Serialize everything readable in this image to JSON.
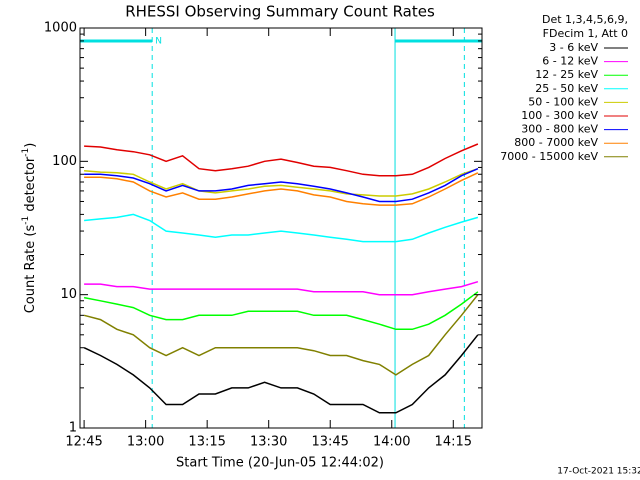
{
  "chart_data": {
    "type": "line",
    "title": "RHESSI Observing Summary Count Rates",
    "xlabel": "Start Time (20-Jun-05 12:44:02)",
    "ylabel": [
      "Count Rate (s",
      "-1",
      " detector",
      "-1",
      ")"
    ],
    "legend_header": [
      "Det 1,3,4,5,6,9,",
      "FDecim 1, Att 0"
    ],
    "footer": "17-Oct-2021 15:32",
    "log_y": true,
    "xlim": [
      764,
      862
    ],
    "ylim": [
      1,
      1000
    ],
    "yticks": [
      1,
      10,
      100,
      1000
    ],
    "xticks": [
      {
        "value": 765,
        "label": "12:45"
      },
      {
        "value": 780,
        "label": "13:00"
      },
      {
        "value": 795,
        "label": "13:15"
      },
      {
        "value": 810,
        "label": "13:30"
      },
      {
        "value": 825,
        "label": "13:45"
      },
      {
        "value": 840,
        "label": "14:00"
      },
      {
        "value": 855,
        "label": "14:15"
      }
    ],
    "markers": [
      {
        "x": 764,
        "style": "solid"
      },
      {
        "x": 781.6,
        "style": "dashed"
      },
      {
        "x": 840.8,
        "style": "solid"
      },
      {
        "x": 857.7,
        "style": "dashed"
      }
    ],
    "bars": [
      {
        "range": [
          764,
          781.6
        ],
        "label": "N"
      },
      {
        "range": [
          840.8,
          862
        ]
      }
    ],
    "marker_color": "#00e0e0",
    "x": [
      765,
      769,
      773,
      777,
      781,
      785,
      789,
      793,
      797,
      801,
      805,
      809,
      813,
      817,
      821,
      825,
      829,
      833,
      837,
      841,
      845,
      849,
      853,
      857,
      861
    ],
    "series": [
      {
        "name": "3 - 6 keV",
        "color": "#000000",
        "values": [
          4,
          3.5,
          3,
          2.5,
          2,
          1.5,
          1.5,
          1.8,
          1.8,
          2,
          2,
          2.2,
          2,
          2,
          1.8,
          1.5,
          1.5,
          1.5,
          1.3,
          1.3,
          1.5,
          2,
          2.5,
          3.5,
          5
        ]
      },
      {
        "name": "6 - 12 keV",
        "color": "#ff00ff",
        "values": [
          12,
          12,
          11.5,
          11.5,
          11,
          11,
          11,
          11,
          11,
          11,
          11,
          11,
          11,
          11,
          10.5,
          10.5,
          10.5,
          10.5,
          10,
          10,
          10,
          10.5,
          11,
          11.5,
          12.5
        ]
      },
      {
        "name": "12 - 25 keV",
        "color": "#00ff00",
        "values": [
          9.5,
          9,
          8.5,
          8,
          7,
          6.5,
          6.5,
          7,
          7,
          7,
          7.5,
          7.5,
          7.5,
          7.5,
          7,
          7,
          7,
          6.5,
          6,
          5.5,
          5.5,
          6,
          7,
          8.5,
          10.5
        ]
      },
      {
        "name": "25 - 50 keV",
        "color": "#00ffff",
        "values": [
          36,
          37,
          38,
          40,
          36,
          30,
          29,
          28,
          27,
          28,
          28,
          29,
          30,
          29,
          28,
          27,
          26,
          25,
          25,
          25,
          26,
          29,
          32,
          35,
          38
        ]
      },
      {
        "name": "50 - 100 keV",
        "color": "#cccc00",
        "values": [
          85,
          83,
          82,
          80,
          70,
          62,
          68,
          60,
          58,
          60,
          62,
          65,
          66,
          64,
          62,
          60,
          57,
          56,
          55,
          55,
          57,
          62,
          70,
          80,
          88
        ]
      },
      {
        "name": "100 - 300 keV",
        "color": "#e00000",
        "values": [
          130,
          128,
          122,
          118,
          112,
          100,
          110,
          88,
          85,
          88,
          92,
          100,
          104,
          98,
          92,
          90,
          85,
          80,
          78,
          78,
          80,
          90,
          105,
          120,
          135
        ]
      },
      {
        "name": "300 - 800 keV",
        "color": "#0000ff",
        "values": [
          80,
          80,
          78,
          75,
          68,
          60,
          66,
          60,
          60,
          62,
          66,
          68,
          70,
          68,
          65,
          62,
          58,
          54,
          50,
          50,
          52,
          58,
          66,
          78,
          88
        ]
      },
      {
        "name": "800 - 7000 keV",
        "color": "#ff8000",
        "values": [
          76,
          76,
          74,
          70,
          60,
          54,
          58,
          52,
          52,
          54,
          57,
          60,
          62,
          60,
          56,
          54,
          50,
          48,
          47,
          47,
          48,
          54,
          62,
          72,
          82
        ]
      },
      {
        "name": "7000 - 15000 keV",
        "color": "#808000",
        "values": [
          7,
          6.5,
          5.5,
          5,
          4,
          3.5,
          4,
          3.5,
          4,
          4,
          4,
          4,
          4,
          4,
          3.8,
          3.5,
          3.5,
          3.2,
          3,
          2.5,
          3,
          3.5,
          5,
          7,
          10
        ]
      }
    ]
  }
}
